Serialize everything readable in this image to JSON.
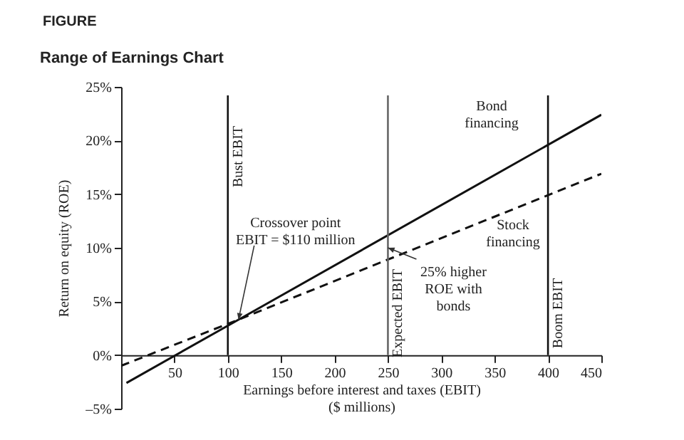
{
  "chart_data": {
    "type": "line",
    "title": "Range of Earnings Chart",
    "xlabel": "Earnings before interest and taxes (EBIT)\n($ millions)",
    "ylabel": "Return on equity (ROE)",
    "xlim": [
      0,
      450
    ],
    "xticks": [
      50,
      100,
      150,
      200,
      250,
      300,
      350,
      400,
      450
    ],
    "ylim": [
      -5,
      25
    ],
    "yticks": [
      {
        "value": -5,
        "label": "–5%"
      },
      {
        "value": 0,
        "label": "0%"
      },
      {
        "value": 5,
        "label": "5%"
      },
      {
        "value": 10,
        "label": "10%"
      },
      {
        "value": 15,
        "label": "15%"
      },
      {
        "value": 20,
        "label": "20%"
      },
      {
        "value": 25,
        "label": "25%"
      }
    ],
    "grid": false,
    "marker": "none",
    "series": [
      {
        "name": "Bond financing",
        "color": "#111111",
        "line_style": "solid",
        "x": [
          5,
          110,
          450
        ],
        "values": [
          -2.6,
          3.3,
          22.4
        ]
      },
      {
        "name": "Stock financing",
        "color": "#111111",
        "line_style": "dashed",
        "x": [
          0,
          110,
          450
        ],
        "values": [
          -1.0,
          3.3,
          16.9
        ]
      }
    ],
    "ref_lines": [
      {
        "axis": "x",
        "value": 100,
        "label": "Bust EBIT",
        "color": "#111111"
      },
      {
        "axis": "x",
        "value": 250,
        "label": "Expected EBIT",
        "color": "#666666"
      },
      {
        "axis": "x",
        "value": 400,
        "label": "Boom EBIT",
        "color": "#111111"
      }
    ],
    "annotations": [
      "FIGURE",
      {
        "text": "Crossover point\nEBIT = $110 million",
        "x": 110,
        "y": 3.3
      },
      {
        "text": "25% higher\nROE with\nbonds",
        "x": 250,
        "y": 10
      }
    ]
  }
}
